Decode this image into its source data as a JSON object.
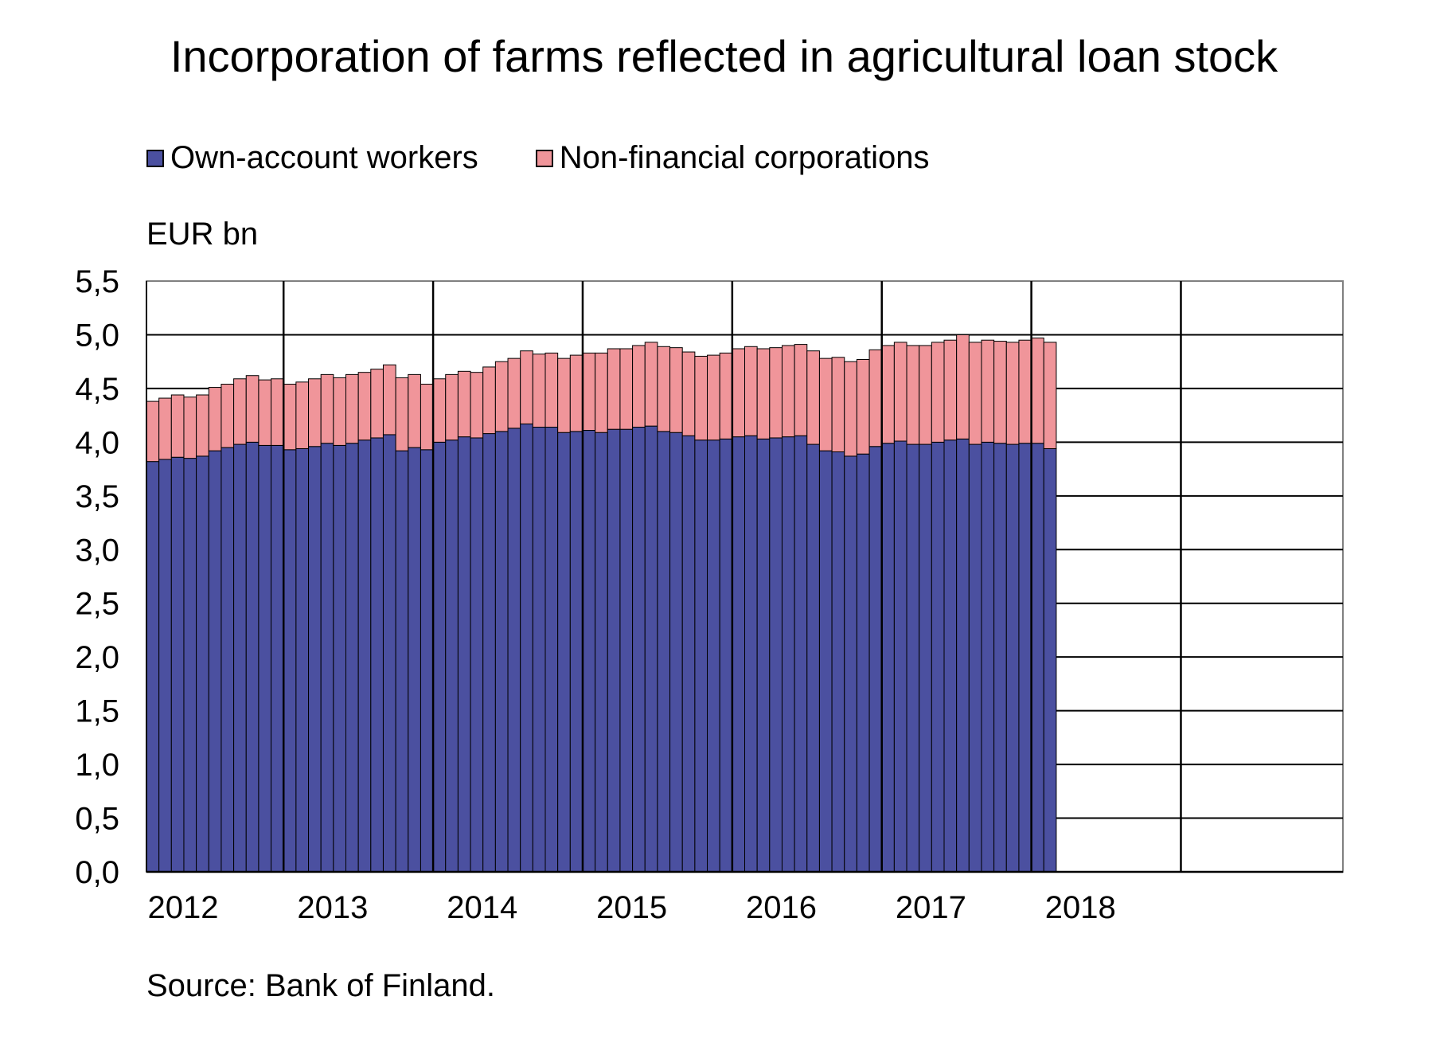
{
  "title": "Incorporation of farms reflected in agricultural loan stock",
  "unit_label": "EUR bn",
  "source": "Source: Bank of Finland.",
  "colors": {
    "own": "#4B50A0",
    "nfc": "#F0959A",
    "grid": "#000000"
  },
  "chart_data": {
    "type": "bar",
    "stacked": true,
    "title": "Incorporation of farms reflected in agricultural loan stock",
    "ylabel": "EUR bn",
    "ylim": [
      0,
      5.5
    ],
    "yticks": [
      "0,0",
      "0,5",
      "1,0",
      "1,5",
      "2,0",
      "2,5",
      "3,0",
      "3,5",
      "4,0",
      "4,5",
      "5,0",
      "5,5"
    ],
    "xtick_labels": [
      "2012",
      "2013",
      "2014",
      "2015",
      "2016",
      "2017",
      "2018"
    ],
    "x_start": "2012-01",
    "x_end": "2019-12",
    "legend": "top-left",
    "grid": true,
    "series": [
      {
        "name": "Own-account workers",
        "values": [
          3.82,
          3.84,
          3.86,
          3.85,
          3.87,
          3.92,
          3.95,
          3.98,
          4.0,
          3.97,
          3.97,
          3.93,
          3.94,
          3.96,
          3.99,
          3.97,
          3.99,
          4.02,
          4.04,
          4.07,
          3.92,
          3.95,
          3.93,
          4.0,
          4.02,
          4.05,
          4.04,
          4.08,
          4.1,
          4.13,
          4.17,
          4.14,
          4.14,
          4.09,
          4.1,
          4.11,
          4.09,
          4.12,
          4.12,
          4.14,
          4.15,
          4.1,
          4.09,
          4.06,
          4.02,
          4.02,
          4.03,
          4.05,
          4.06,
          4.03,
          4.04,
          4.05,
          4.06,
          3.98,
          3.92,
          3.91,
          3.87,
          3.89,
          3.96,
          3.99,
          4.01,
          3.98,
          3.98,
          4.0,
          4.02,
          4.03,
          3.98,
          4.0,
          3.99,
          3.98,
          3.99,
          3.99,
          3.94
        ]
      },
      {
        "name": "Non-financial corporations",
        "values": [
          0.56,
          0.57,
          0.58,
          0.57,
          0.57,
          0.59,
          0.59,
          0.61,
          0.62,
          0.61,
          0.62,
          0.61,
          0.62,
          0.63,
          0.64,
          0.63,
          0.64,
          0.63,
          0.64,
          0.65,
          0.68,
          0.68,
          0.61,
          0.59,
          0.61,
          0.61,
          0.61,
          0.62,
          0.65,
          0.65,
          0.68,
          0.68,
          0.69,
          0.69,
          0.71,
          0.72,
          0.74,
          0.75,
          0.75,
          0.76,
          0.78,
          0.79,
          0.79,
          0.78,
          0.78,
          0.79,
          0.8,
          0.82,
          0.83,
          0.84,
          0.84,
          0.85,
          0.85,
          0.87,
          0.86,
          0.88,
          0.88,
          0.88,
          0.9,
          0.91,
          0.92,
          0.92,
          0.92,
          0.93,
          0.93,
          0.97,
          0.95,
          0.95,
          0.95,
          0.95,
          0.96,
          0.98,
          0.99
        ]
      }
    ]
  }
}
